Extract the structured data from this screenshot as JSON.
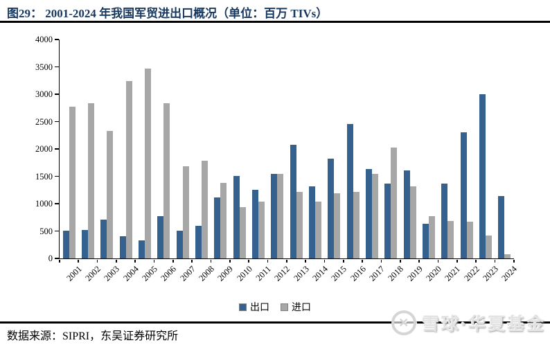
{
  "header": {
    "title": "图29： 2001-2024 年我国军贸进出口概况（单位：百万 TIVs）"
  },
  "chart_data": {
    "type": "bar",
    "title": "2001-2024 年我国军贸进出口概况",
    "unit": "百万 TIVs",
    "categories": [
      "2001",
      "2002",
      "2003",
      "2004",
      "2005",
      "2006",
      "2007",
      "2008",
      "2009",
      "2010",
      "2011",
      "2012",
      "2013",
      "2014",
      "2015",
      "2016",
      "2017",
      "2018",
      "2019",
      "2020",
      "2021",
      "2022",
      "2023",
      "2024"
    ],
    "series": [
      {
        "name": "出口",
        "color": "#35618e",
        "values": [
          510,
          520,
          710,
          400,
          330,
          770,
          510,
          590,
          1120,
          1510,
          1250,
          1540,
          2080,
          1320,
          1820,
          2460,
          1630,
          1370,
          1610,
          630,
          1370,
          2300,
          3000,
          1140
        ]
      },
      {
        "name": "进口",
        "color": "#a7a7a7",
        "values": [
          2770,
          2840,
          2330,
          3240,
          3470,
          2840,
          1690,
          1780,
          1380,
          940,
          1040,
          1550,
          1220,
          1040,
          1190,
          1220,
          1540,
          2020,
          1320,
          770,
          690,
          670,
          420,
          70
        ]
      }
    ],
    "ylim": [
      0,
      4000
    ],
    "ytick_step": 500,
    "grid": false,
    "legend_position": "bottom",
    "xlabel": "",
    "ylabel": ""
  },
  "footer": {
    "source": "数据来源：SIPRI，东吴证券研究所"
  },
  "watermark": {
    "text": "雪球·华夏基金",
    "logo_glyph": "✕"
  },
  "colors": {
    "title": "#17375e",
    "export_bar": "#35618e",
    "import_bar": "#a7a7a7",
    "axis": "#000000"
  }
}
